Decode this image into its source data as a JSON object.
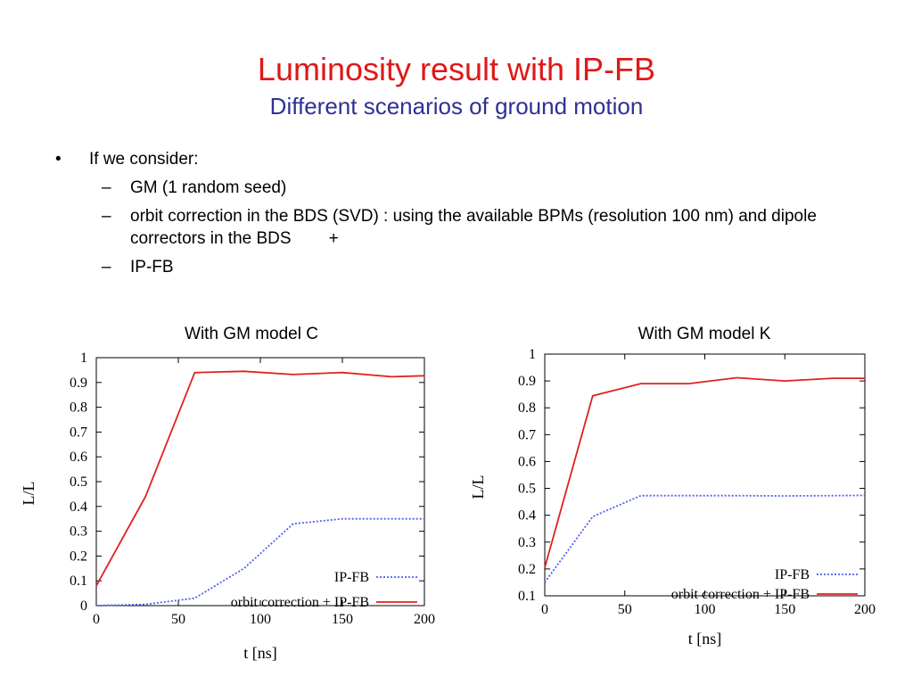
{
  "slide": {
    "title": "Luminosity result with IP-FB",
    "subtitle": "Different scenarios of ground motion",
    "bullet": "If we consider:",
    "subitems": [
      "GM (1 random seed)",
      "orbit correction in the BDS (SVD) : using the available BPMs (resolution 100 nm) and dipole correctors in the BDS",
      "IP-FB"
    ],
    "subitem_extra": "+"
  },
  "colors": {
    "title": "#e01818",
    "subtitle": "#2e3192",
    "ipfb": "#4f5ff0",
    "orbit": "#e02020"
  },
  "chart_data": [
    {
      "type": "line",
      "caption": "With GM model C",
      "xlabel": "t [ns]",
      "ylabel_main": "L/L",
      "ylabel_sub": "0",
      "xlim": [
        0,
        200
      ],
      "ylim": [
        0,
        1
      ],
      "xticks": [
        0,
        50,
        100,
        150,
        200
      ],
      "yticks": [
        0,
        0.1,
        0.2,
        0.3,
        0.4,
        0.5,
        0.6,
        0.7,
        0.8,
        0.9,
        1
      ],
      "ytick_labels": [
        "0",
        "0.1",
        "0.2",
        "0.3",
        "0.4",
        "0.5",
        "0.6",
        "0.7",
        "0.8",
        "0.9",
        "1"
      ],
      "grid": false,
      "legend": "bottom-right",
      "series": [
        {
          "name": "IP-FB",
          "style": "dotted",
          "x": [
            0,
            30,
            60,
            90,
            120,
            150,
            180,
            200
          ],
          "y": [
            0.0,
            0.005,
            0.03,
            0.15,
            0.33,
            0.35,
            0.35,
            0.35
          ]
        },
        {
          "name": "orbit correction + IP-FB",
          "style": "solid",
          "x": [
            0,
            30,
            60,
            90,
            120,
            150,
            180,
            200
          ],
          "y": [
            0.08,
            0.44,
            0.94,
            0.945,
            0.932,
            0.94,
            0.923,
            0.927
          ]
        }
      ]
    },
    {
      "type": "line",
      "caption": "With GM model K",
      "xlabel": "t [ns]",
      "ylabel_main": "L/L",
      "ylabel_sub": "0",
      "xlim": [
        0,
        200
      ],
      "ylim": [
        0.1,
        1
      ],
      "xticks": [
        0,
        50,
        100,
        150,
        200
      ],
      "yticks": [
        0.1,
        0.2,
        0.3,
        0.4,
        0.5,
        0.6,
        0.7,
        0.8,
        0.9,
        1
      ],
      "ytick_labels": [
        "0.1",
        "0.2",
        "0.3",
        "0.4",
        "0.5",
        "0.6",
        "0.7",
        "0.8",
        "0.9",
        "1"
      ],
      "grid": false,
      "legend": "bottom-right",
      "series": [
        {
          "name": "IP-FB",
          "style": "dotted",
          "x": [
            0,
            30,
            60,
            90,
            120,
            150,
            180,
            200
          ],
          "y": [
            0.15,
            0.395,
            0.473,
            0.473,
            0.473,
            0.472,
            0.473,
            0.474
          ]
        },
        {
          "name": "orbit correction + IP-FB",
          "style": "solid",
          "x": [
            0,
            30,
            60,
            90,
            120,
            150,
            180,
            200
          ],
          "y": [
            0.205,
            0.845,
            0.89,
            0.89,
            0.912,
            0.9,
            0.91,
            0.91
          ]
        }
      ]
    }
  ]
}
